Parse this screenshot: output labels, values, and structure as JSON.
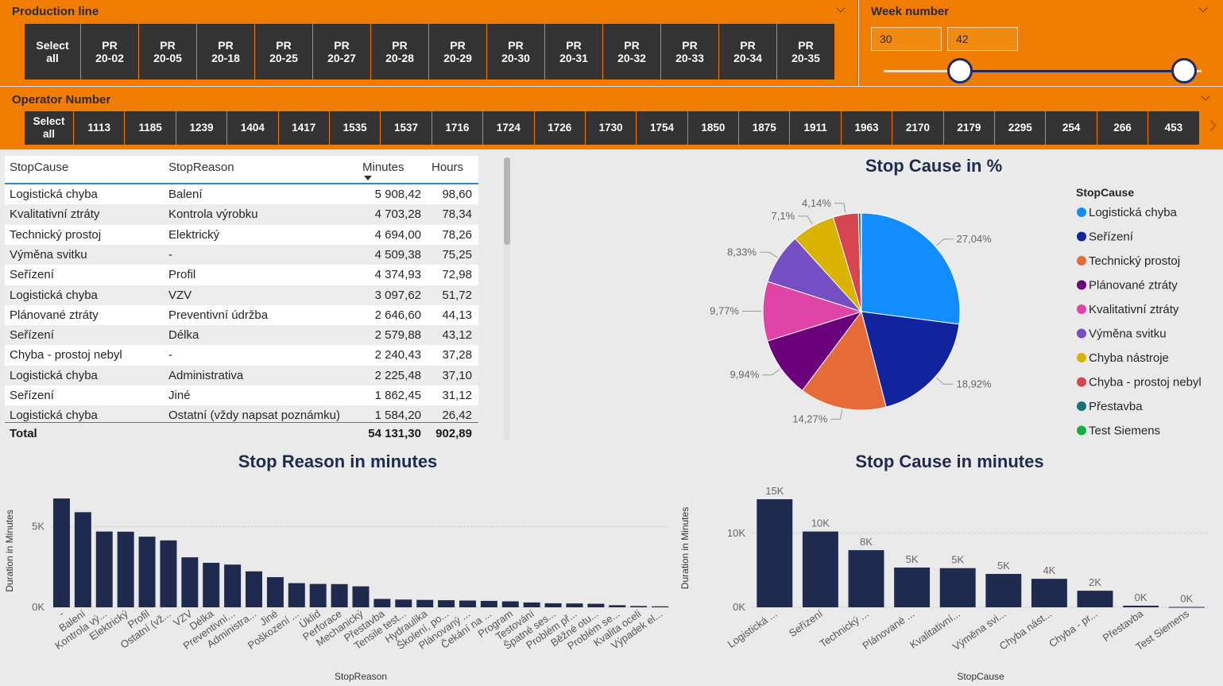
{
  "production_line": {
    "title": "Production line",
    "items": [
      "Select\nall",
      "PR\n20-02",
      "PR\n20-05",
      "PR\n20-18",
      "PR\n20-25",
      "PR\n20-27",
      "PR\n20-28",
      "PR\n20-29",
      "PR\n20-30",
      "PR\n20-31",
      "PR\n20-32",
      "PR\n20-33",
      "PR\n20-34",
      "PR\n20-35"
    ]
  },
  "week_number": {
    "title": "Week number",
    "from": "30",
    "to": "42",
    "range_min": 30,
    "range_max": 42
  },
  "operator_number": {
    "title": "Operator Number",
    "items": [
      "Select\nall",
      "1113",
      "1185",
      "1239",
      "1404",
      "1417",
      "1535",
      "1537",
      "1716",
      "1724",
      "1726",
      "1730",
      "1754",
      "1850",
      "1875",
      "1911",
      "1963",
      "2170",
      "2179",
      "2295",
      "254",
      "266",
      "453"
    ]
  },
  "table": {
    "headers": {
      "cause": "StopCause",
      "reason": "StopReason",
      "minutes": "Minutes",
      "hours": "Hours"
    },
    "rows": [
      {
        "cause": "Logistická chyba",
        "reason": "Balení",
        "minutes": "5 908,42",
        "hours": "98,60"
      },
      {
        "cause": "Kvalitativní ztráty",
        "reason": "Kontrola výrobku",
        "minutes": "4 703,28",
        "hours": "78,34"
      },
      {
        "cause": "Technický prostoj",
        "reason": "Elektrický",
        "minutes": "4 694,00",
        "hours": "78,26"
      },
      {
        "cause": "Výměna svitku",
        "reason": "-",
        "minutes": "4 509,38",
        "hours": "75,25"
      },
      {
        "cause": "Seřízení",
        "reason": "Profil",
        "minutes": "4 374,93",
        "hours": "72,98"
      },
      {
        "cause": "Logistická chyba",
        "reason": "VZV",
        "minutes": "3 097,62",
        "hours": "51,72"
      },
      {
        "cause": "Plánované ztráty",
        "reason": "Preventivní údržba",
        "minutes": "2 646,60",
        "hours": "44,13"
      },
      {
        "cause": "Seřízení",
        "reason": "Délka",
        "minutes": "2 579,88",
        "hours": "43,12"
      },
      {
        "cause": "Chyba - prostoj nebyl",
        "reason": "-",
        "minutes": "2 240,43",
        "hours": "37,28"
      },
      {
        "cause": "Logistická chyba",
        "reason": "Administrativa",
        "minutes": "2 225,48",
        "hours": "37,10"
      },
      {
        "cause": "Seřízení",
        "reason": "Jiné",
        "minutes": "1 862,45",
        "hours": "31,12"
      },
      {
        "cause": "Logistická chyba",
        "reason": "Ostatní (vždy napsat poznámku)",
        "minutes": "1 584,20",
        "hours": "26,42"
      }
    ],
    "total": {
      "label": "Total",
      "minutes": "54 131,30",
      "hours": "902,89"
    }
  },
  "chart_data": [
    {
      "type": "pie",
      "title": "Stop Cause in %",
      "legend_title": "StopCause",
      "categories": [
        "Logistická chyba",
        "Seřízení",
        "Technický prostoj",
        "Plánované ztráty",
        "Kvalitativní ztráty",
        "Výměna svitku",
        "Chyba nástroje",
        "Chyba - prostoj nebyl",
        "Přestavba",
        "Test Siemens"
      ],
      "values": [
        27.04,
        18.92,
        14.27,
        9.94,
        9.77,
        8.33,
        7.1,
        4.14,
        0.4,
        0.09
      ],
      "labels": [
        "27,04%",
        "18,92%",
        "14,27%",
        "9,94%",
        "9,77%",
        "8,33%",
        "7,1%",
        "4,14%",
        "",
        ""
      ],
      "colors": [
        "#118dff",
        "#12239e",
        "#e66c37",
        "#6b007b",
        "#e044a7",
        "#744ec2",
        "#d9b300",
        "#d64550",
        "#197278",
        "#1aab40"
      ]
    },
    {
      "type": "bar",
      "title": "Stop Reason in minutes",
      "xlabel": "StopReason",
      "ylabel": "Duration in Minutes",
      "ylim": [
        0,
        7000
      ],
      "ticks": [
        "0K",
        "5K"
      ],
      "tick_values": [
        0,
        5000
      ],
      "categories": [
        "-",
        "Balení",
        "Kontrola vý...",
        "Elektrický",
        "Profil",
        "Ostatní (vž...",
        "VZV",
        "Délka",
        "Preventivní...",
        "Administra...",
        "Jiné",
        "Poškození ...",
        "Úklid",
        "Perforace",
        "Mechanický",
        "Přestavba",
        "Tensile test...",
        "Hydraulika",
        "Školení, po...",
        "Plánovaný ...",
        "Čekání na ...",
        "Program",
        "Testování",
        "Špatné ses...",
        "Problém př...",
        "Běžné otu...",
        "Problém se...",
        "Kvalita oceli",
        "Výpadek el..."
      ],
      "values": [
        6750,
        5900,
        4700,
        4690,
        4380,
        4150,
        3100,
        2760,
        2650,
        2230,
        1870,
        1500,
        1450,
        1440,
        1300,
        520,
        480,
        460,
        440,
        420,
        400,
        370,
        300,
        250,
        240,
        220,
        130,
        80,
        60
      ]
    },
    {
      "type": "bar",
      "title": "Stop Cause in minutes",
      "xlabel": "StopCause",
      "ylabel": "Duration in Minutes",
      "ylim": [
        0,
        16000
      ],
      "ticks": [
        "0K",
        "10K"
      ],
      "tick_values": [
        0,
        10000
      ],
      "categories": [
        "Logistická ...",
        "Seřízení",
        "Technický ...",
        "Plánované ...",
        "Kvalitativní...",
        "Výměna svi...",
        "Chyba nást...",
        "Chyba - pr...",
        "Přestavba",
        "Test Siemens"
      ],
      "values": [
        14600,
        10240,
        7720,
        5370,
        5290,
        4510,
        3850,
        2240,
        220,
        50
      ],
      "data_labels": [
        "15K",
        "10K",
        "8K",
        "5K",
        "5K",
        "5K",
        "4K",
        "2K",
        "0K",
        "0K"
      ]
    }
  ]
}
